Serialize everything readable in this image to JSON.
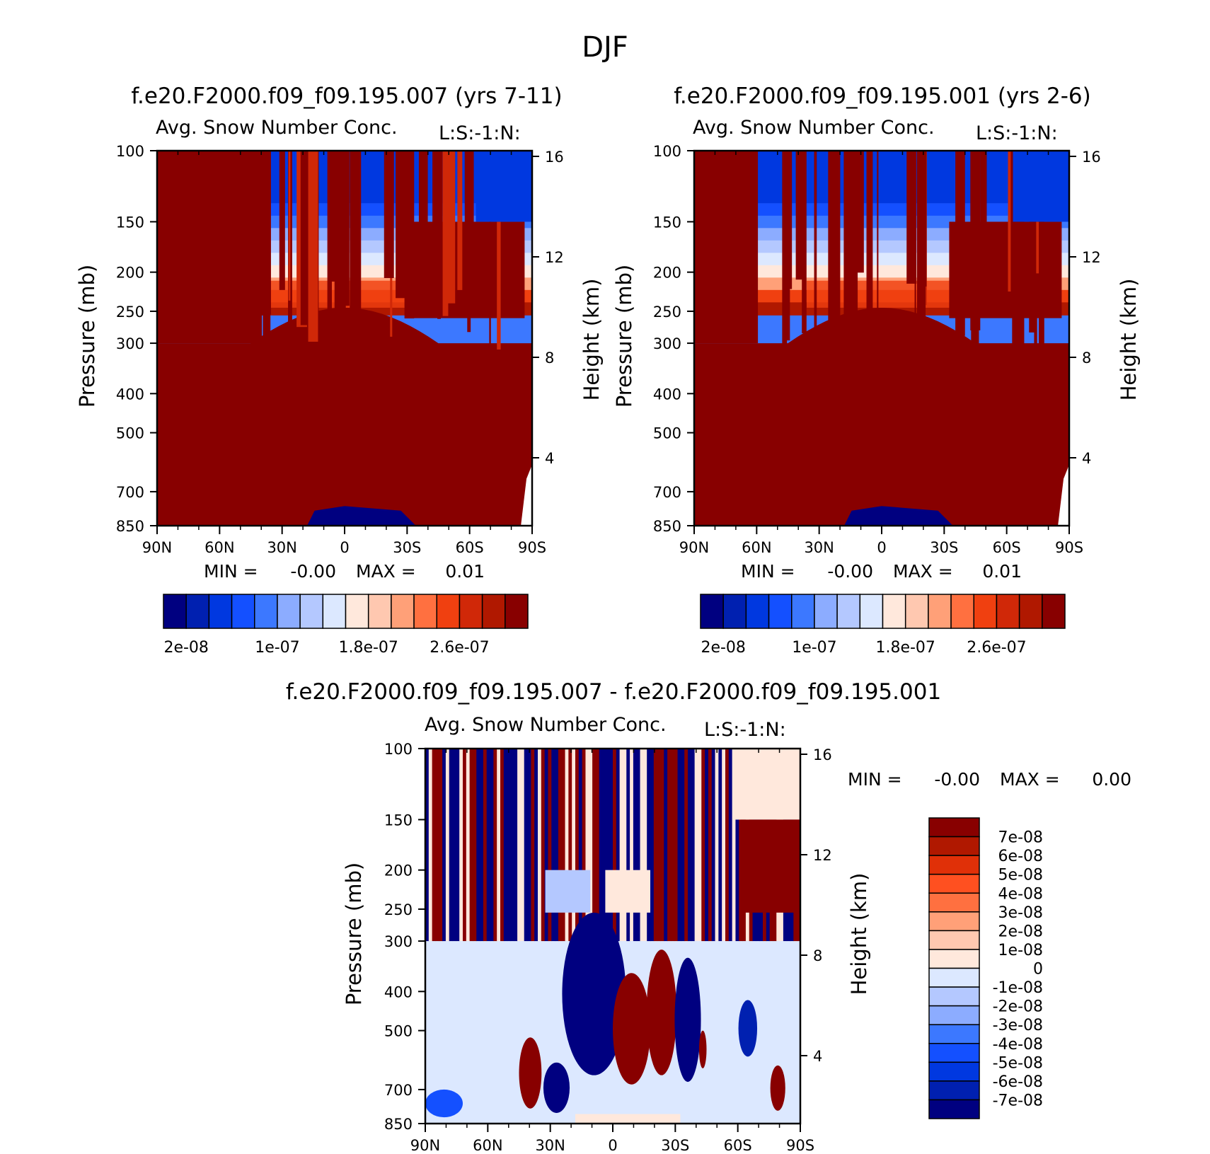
{
  "figure_title": "DJF",
  "colors": {
    "model_levels": [
      "#000080",
      "#0020b0",
      "#0038e0",
      "#1450ff",
      "#3c78ff",
      "#8cacff",
      "#b4c8ff",
      "#dce8ff",
      "#ffe8dc",
      "#ffc8b0",
      "#ffa078",
      "#ff7040",
      "#f04010",
      "#d02808",
      "#b01800",
      "#880000"
    ],
    "diff_levels": [
      "#000080",
      "#0020b0",
      "#0038e0",
      "#1450ff",
      "#3c78ff",
      "#8cacff",
      "#b4c8ff",
      "#dce8ff",
      "#ffe8dc",
      "#ffc8b0",
      "#ffa078",
      "#ff7040",
      "#ff5020",
      "#e03008",
      "#b01800",
      "#880000"
    ],
    "dark_red": "#880000",
    "dark_blue": "#000080"
  },
  "chart_data": [
    {
      "type": "heatmap",
      "title": "f.e20.F2000.f09_f09.195.007 (yrs 7-11)",
      "subtitle": "Avg. Snow Number Conc.",
      "units_label": "L:S:-1:N:",
      "ylabel": "Pressure (mb)",
      "ylabel_right": "Height (km)",
      "x_ticks": [
        "90N",
        "60N",
        "30N",
        "0",
        "30S",
        "60S",
        "90S"
      ],
      "y_ticks": [
        100,
        150,
        200,
        250,
        300,
        400,
        500,
        700,
        850
      ],
      "y_ticks_right": [
        16,
        12,
        8,
        4
      ],
      "ylim": [
        100,
        850
      ],
      "ylog": true,
      "min_label": "MIN =",
      "min_value": "-0.00",
      "max_label": "MAX =",
      "max_value": "0.01",
      "colorbar_labels": [
        "2e-08",
        "1e-07",
        "1.8e-07",
        "2.6e-07"
      ]
    },
    {
      "type": "heatmap",
      "title": "f.e20.F2000.f09_f09.195.001 (yrs 2-6)",
      "subtitle": "Avg. Snow Number Conc.",
      "units_label": "L:S:-1:N:",
      "ylabel": "Pressure (mb)",
      "ylabel_right": "Height (km)",
      "x_ticks": [
        "90N",
        "60N",
        "30N",
        "0",
        "30S",
        "60S",
        "90S"
      ],
      "y_ticks": [
        100,
        150,
        200,
        250,
        300,
        400,
        500,
        700,
        850
      ],
      "y_ticks_right": [
        16,
        12,
        8,
        4
      ],
      "ylim": [
        100,
        850
      ],
      "ylog": true,
      "min_label": "MIN =",
      "min_value": "-0.00",
      "max_label": "MAX =",
      "max_value": "0.01",
      "colorbar_labels": [
        "2e-08",
        "1e-07",
        "1.8e-07",
        "2.6e-07"
      ]
    },
    {
      "type": "heatmap",
      "title": "f.e20.F2000.f09_f09.195.007 - f.e20.F2000.f09_f09.195.001",
      "subtitle": "Avg. Snow Number Conc.",
      "units_label": "L:S:-1:N:",
      "ylabel": "Pressure (mb)",
      "ylabel_right": "Height (km)",
      "x_ticks": [
        "90N",
        "60N",
        "30N",
        "0",
        "30S",
        "60S",
        "90S"
      ],
      "y_ticks": [
        100,
        150,
        200,
        250,
        300,
        400,
        500,
        700,
        850
      ],
      "y_ticks_right": [
        16,
        12,
        8,
        4
      ],
      "ylim": [
        100,
        850
      ],
      "ylog": true,
      "min_label": "MIN =",
      "min_value": "-0.00",
      "max_label": "MAX =",
      "max_value": "0.00",
      "colorbar_labels": [
        "7e-08",
        "6e-08",
        "5e-08",
        "4e-08",
        "3e-08",
        "2e-08",
        "1e-08",
        "0",
        "-1e-08",
        "-2e-08",
        "-3e-08",
        "-4e-08",
        "-5e-08",
        "-6e-08",
        "-7e-08"
      ]
    }
  ]
}
